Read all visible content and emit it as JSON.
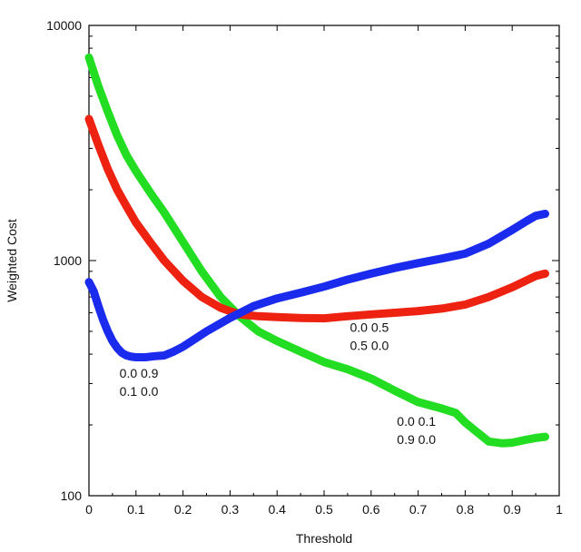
{
  "chart_data": {
    "type": "line",
    "title": "",
    "xlabel": "Threshold",
    "ylabel": "Weighted Cost",
    "xlim": [
      0,
      1
    ],
    "ylim": [
      100,
      10000
    ],
    "yscale": "log",
    "grid": false,
    "x_ticks": [
      "0",
      "0.1",
      "0.2",
      "0.3",
      "0.4",
      "0.5",
      "0.6",
      "0.7",
      "0.8",
      "0.9",
      "1"
    ],
    "x_tick_values": [
      0,
      0.1,
      0.2,
      0.3,
      0.4,
      0.5,
      0.6,
      0.7,
      0.8,
      0.9,
      1
    ],
    "y_ticks": [
      "100",
      "1000",
      "10000"
    ],
    "y_tick_values": [
      100,
      1000,
      10000
    ],
    "series": [
      {
        "color": "#22dd22",
        "x": [
          0.0,
          0.02,
          0.04,
          0.06,
          0.08,
          0.1,
          0.13,
          0.16,
          0.2,
          0.24,
          0.28,
          0.32,
          0.36,
          0.4,
          0.45,
          0.5,
          0.55,
          0.6,
          0.65,
          0.7,
          0.75,
          0.78,
          0.8,
          0.82,
          0.85,
          0.88,
          0.9,
          0.93,
          0.95,
          0.97
        ],
        "y": [
          7300,
          5500,
          4300,
          3400,
          2800,
          2400,
          1950,
          1600,
          1200,
          900,
          700,
          580,
          500,
          455,
          410,
          370,
          345,
          315,
          280,
          250,
          235,
          225,
          205,
          190,
          170,
          167,
          168,
          173,
          176,
          178
        ]
      },
      {
        "color": "#ee2211",
        "x": [
          0.0,
          0.02,
          0.04,
          0.06,
          0.08,
          0.1,
          0.13,
          0.16,
          0.2,
          0.24,
          0.28,
          0.32,
          0.36,
          0.4,
          0.45,
          0.5,
          0.55,
          0.6,
          0.65,
          0.7,
          0.75,
          0.8,
          0.85,
          0.9,
          0.95,
          0.97
        ],
        "y": [
          4000,
          3100,
          2450,
          2000,
          1700,
          1450,
          1200,
          1000,
          820,
          700,
          630,
          590,
          580,
          575,
          570,
          568,
          580,
          590,
          600,
          610,
          625,
          650,
          700,
          770,
          860,
          880
        ]
      },
      {
        "color": "#1a2bee",
        "x": [
          0.0,
          0.01,
          0.02,
          0.03,
          0.04,
          0.05,
          0.06,
          0.07,
          0.08,
          0.09,
          0.1,
          0.12,
          0.14,
          0.16,
          0.18,
          0.2,
          0.25,
          0.3,
          0.35,
          0.4,
          0.45,
          0.5,
          0.55,
          0.6,
          0.65,
          0.7,
          0.75,
          0.8,
          0.85,
          0.9,
          0.93,
          0.95,
          0.97
        ],
        "y": [
          810,
          740,
          640,
          560,
          500,
          455,
          425,
          405,
          395,
          390,
          388,
          388,
          392,
          395,
          410,
          430,
          500,
          570,
          640,
          690,
          730,
          775,
          830,
          880,
          930,
          975,
          1020,
          1070,
          1180,
          1350,
          1470,
          1550,
          1580
        ]
      }
    ],
    "annotations": [
      {
        "line1": "0.0 0.9",
        "line2": "0.1 0.0",
        "x": 0.065,
        "y": 318
      },
      {
        "line1": "0.0 0.5",
        "line2": "0.5 0.0",
        "x": 0.555,
        "y": 498
      },
      {
        "line1": "0.0 0.1",
        "line2": "0.9 0.0",
        "x": 0.655,
        "y": 198
      }
    ]
  }
}
